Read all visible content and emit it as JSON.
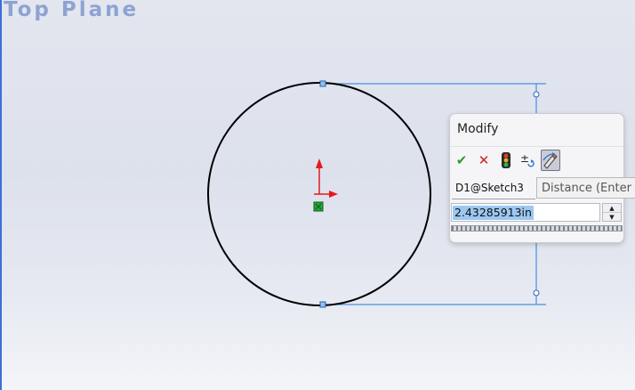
{
  "viewport": {
    "plane_label": "Top Plane"
  },
  "modify_dialog": {
    "title": "Modify",
    "toolbar": [
      {
        "name": "ok-checkmark-icon",
        "glyph": "✔",
        "color": "#2e9b2e"
      },
      {
        "name": "cancel-x-icon",
        "glyph": "✕",
        "color": "#d22020"
      },
      {
        "name": "rebuild-traffic-light-icon",
        "glyph": "",
        "color": "#333333"
      },
      {
        "name": "reverse-dimension-icon",
        "glyph": "±",
        "color": "#333333"
      },
      {
        "name": "mark-dimension-icon",
        "glyph": "",
        "color": "#333333"
      }
    ],
    "dimension_name": "D1@Sketch3",
    "value": "2.43285913in"
  },
  "tooltip": {
    "text": "Distance (Enter a"
  },
  "colors": {
    "sketch_line": "#000000",
    "dimension_line": "#4a8ee6",
    "origin_x_axis": "#e21a1a",
    "origin_y_axis": "#e21a1a",
    "origin_point": "#1fa63b",
    "selection_highlight": "#9cc8f2"
  }
}
